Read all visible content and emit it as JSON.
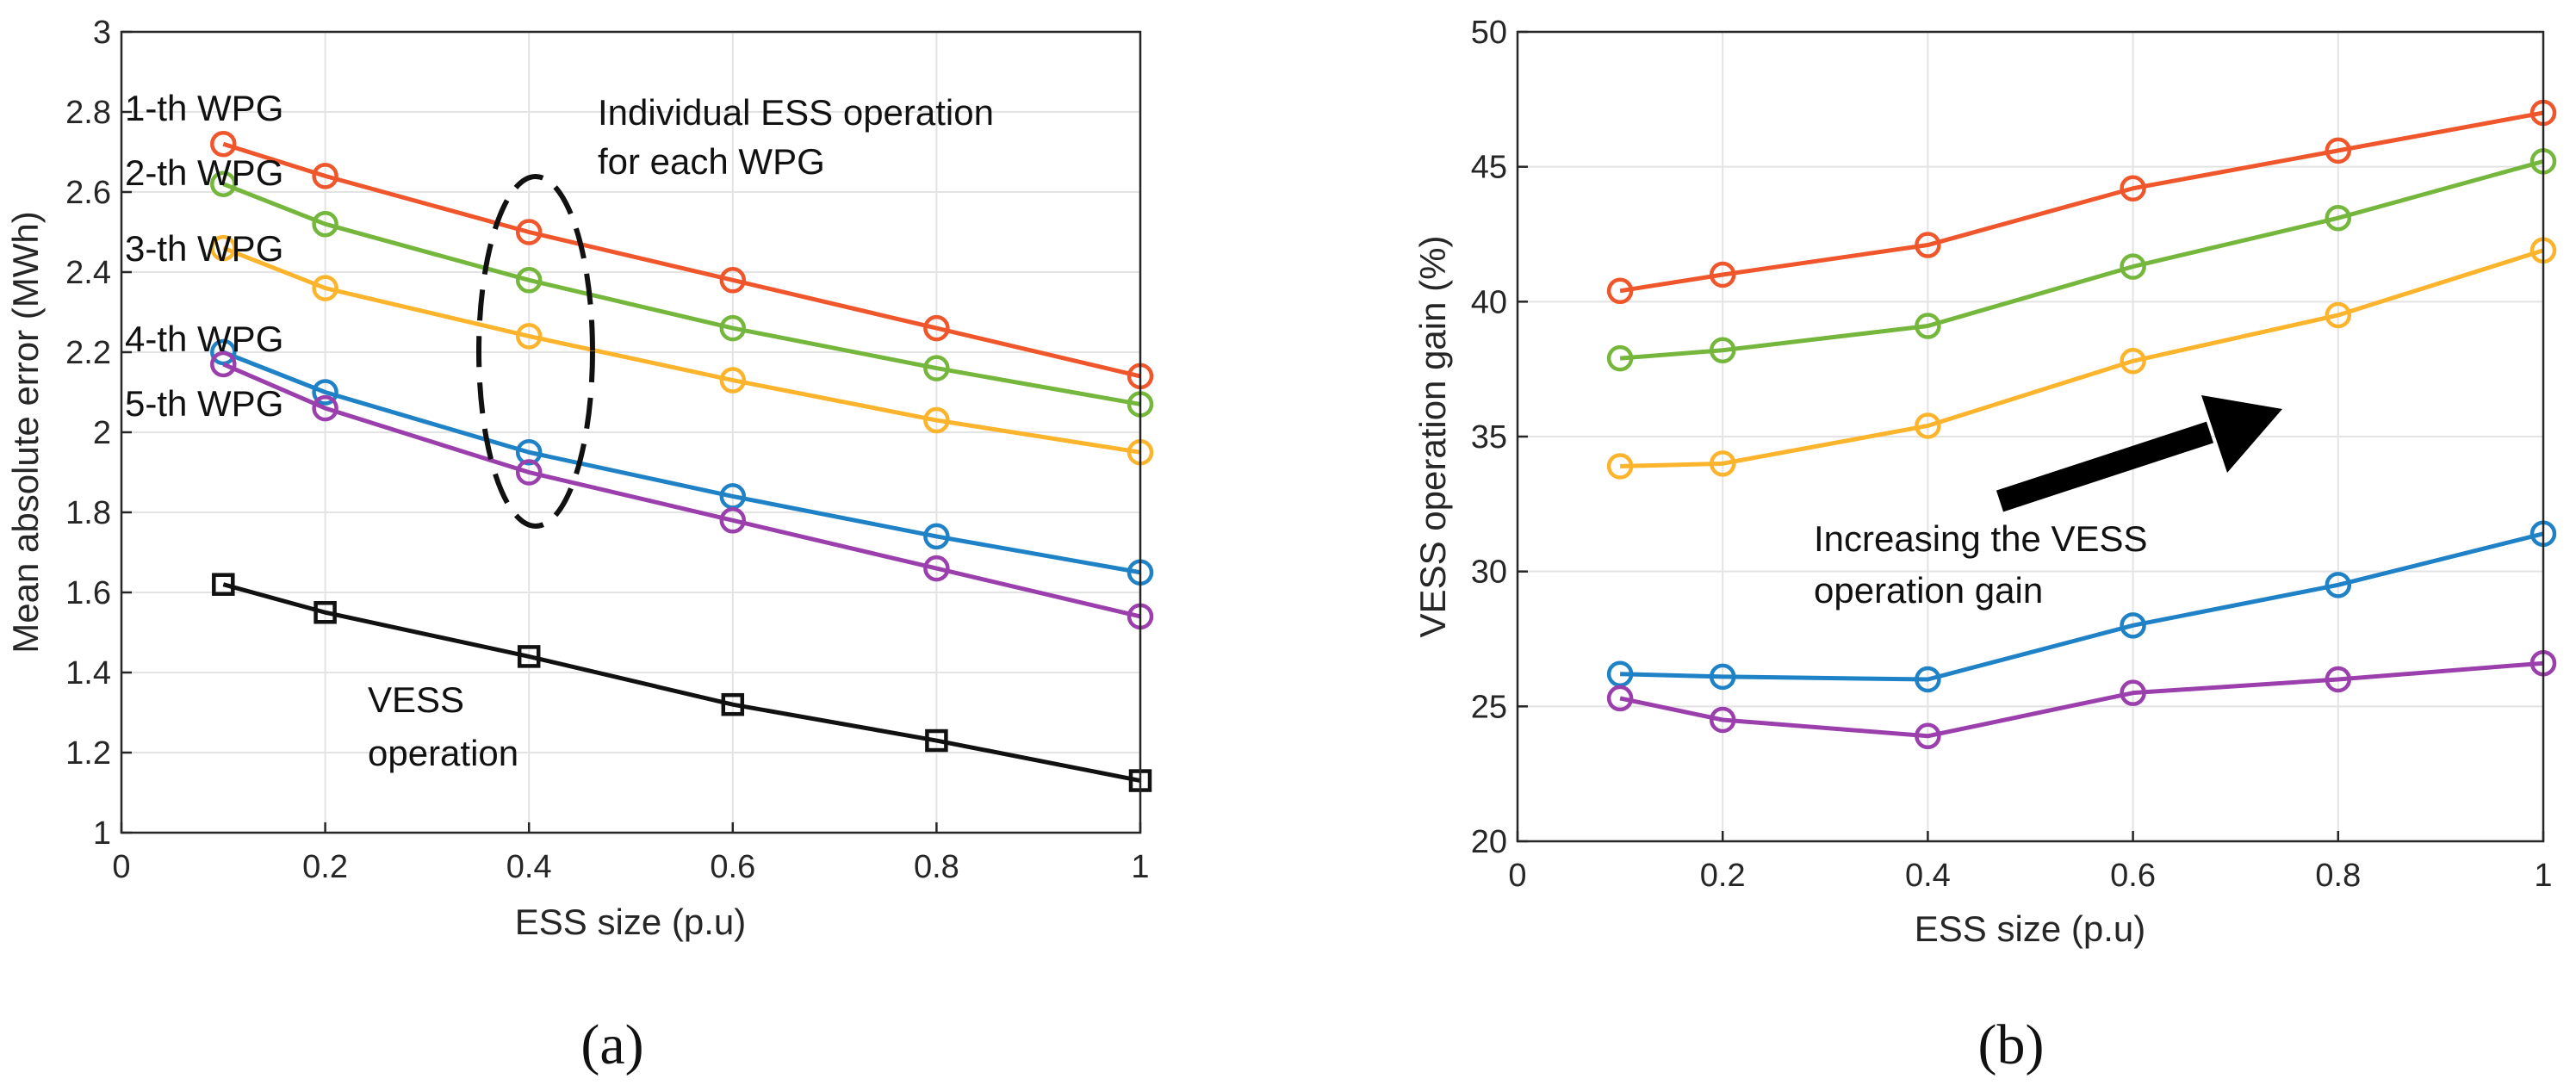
{
  "chart_data": [
    {
      "type": "line",
      "panel": "(a)",
      "xlabel": "ESS size (p.u)",
      "ylabel": "Mean absolute error (MWh)",
      "xlim": [
        0,
        1
      ],
      "ylim": [
        1,
        3
      ],
      "xticks": [
        0,
        0.2,
        0.4,
        0.6,
        0.8,
        1
      ],
      "xtick_labels": [
        "0",
        "0.2",
        "0.4",
        "0.6",
        "0.8",
        "1"
      ],
      "yticks": [
        1,
        1.2,
        1.4,
        1.6,
        1.8,
        2,
        2.2,
        2.4,
        2.6,
        2.8,
        3
      ],
      "ytick_labels": [
        "1",
        "1.2",
        "1.4",
        "1.6",
        "1.8",
        "2",
        "2.2",
        "2.4",
        "2.6",
        "2.8",
        "3"
      ],
      "grid": true,
      "x": [
        0.1,
        0.2,
        0.4,
        0.6,
        0.8,
        1
      ],
      "series": [
        {
          "name": "1-th WPG",
          "color": "#f0562b",
          "marker": "circle",
          "values": [
            2.72,
            2.64,
            2.5,
            2.38,
            2.26,
            2.14
          ]
        },
        {
          "name": "2-th WPG",
          "color": "#74b73c",
          "marker": "circle",
          "values": [
            2.62,
            2.52,
            2.38,
            2.26,
            2.16,
            2.07
          ]
        },
        {
          "name": "3-th WPG",
          "color": "#fbb42c",
          "marker": "circle",
          "values": [
            2.46,
            2.36,
            2.24,
            2.13,
            2.03,
            1.95
          ]
        },
        {
          "name": "4-th WPG",
          "color": "#1f82c6",
          "marker": "circle",
          "values": [
            2.2,
            2.1,
            1.95,
            1.84,
            1.74,
            1.65
          ]
        },
        {
          "name": "5-th WPG",
          "color": "#9b3fad",
          "marker": "circle",
          "values": [
            2.17,
            2.06,
            1.9,
            1.78,
            1.66,
            1.54
          ]
        },
        {
          "name": "VESS operation",
          "color": "#111111",
          "marker": "square",
          "values": [
            1.62,
            1.55,
            1.44,
            1.32,
            1.23,
            1.13
          ]
        }
      ],
      "annotations": {
        "series_labels": [
          "1-th WPG",
          "2-th WPG",
          "3-th WPG",
          "4-th WPG",
          "5-th WPG"
        ],
        "ellipse_text_line1": "Individual ESS operation",
        "ellipse_text_line2": "for each WPG",
        "vess_text_line1": "VESS",
        "vess_text_line2": "operation"
      }
    },
    {
      "type": "line",
      "panel": "(b)",
      "xlabel": "ESS size (p.u)",
      "ylabel": "VESS operation gain (%)",
      "xlim": [
        0,
        1
      ],
      "ylim": [
        20,
        50
      ],
      "xticks": [
        0,
        0.2,
        0.4,
        0.6,
        0.8,
        1
      ],
      "xtick_labels": [
        "0",
        "0.2",
        "0.4",
        "0.6",
        "0.8",
        "1"
      ],
      "yticks": [
        20,
        25,
        30,
        35,
        40,
        45,
        50
      ],
      "ytick_labels": [
        "20",
        "25",
        "30",
        "35",
        "40",
        "45",
        "50"
      ],
      "grid": true,
      "x": [
        0.1,
        0.2,
        0.4,
        0.6,
        0.8,
        1
      ],
      "series": [
        {
          "name": "1-th WPG",
          "color": "#f0562b",
          "marker": "circle",
          "values": [
            40.4,
            41.0,
            42.1,
            44.2,
            45.6,
            47.0
          ]
        },
        {
          "name": "2-th WPG",
          "color": "#74b73c",
          "marker": "circle",
          "values": [
            37.9,
            38.2,
            39.1,
            41.3,
            43.1,
            45.2
          ]
        },
        {
          "name": "3-th WPG",
          "color": "#fbb42c",
          "marker": "circle",
          "values": [
            33.9,
            34.0,
            35.4,
            37.8,
            39.5,
            41.9
          ]
        },
        {
          "name": "4-th WPG",
          "color": "#1f82c6",
          "marker": "circle",
          "values": [
            26.2,
            26.1,
            26.0,
            28.0,
            29.5,
            31.4
          ]
        },
        {
          "name": "5-th WPG",
          "color": "#9b3fad",
          "marker": "circle",
          "values": [
            25.3,
            24.5,
            23.9,
            25.5,
            26.0,
            26.6
          ]
        }
      ],
      "annotations": {
        "arrow_text_line1": "Increasing the VESS",
        "arrow_text_line2": "operation gain"
      }
    }
  ]
}
